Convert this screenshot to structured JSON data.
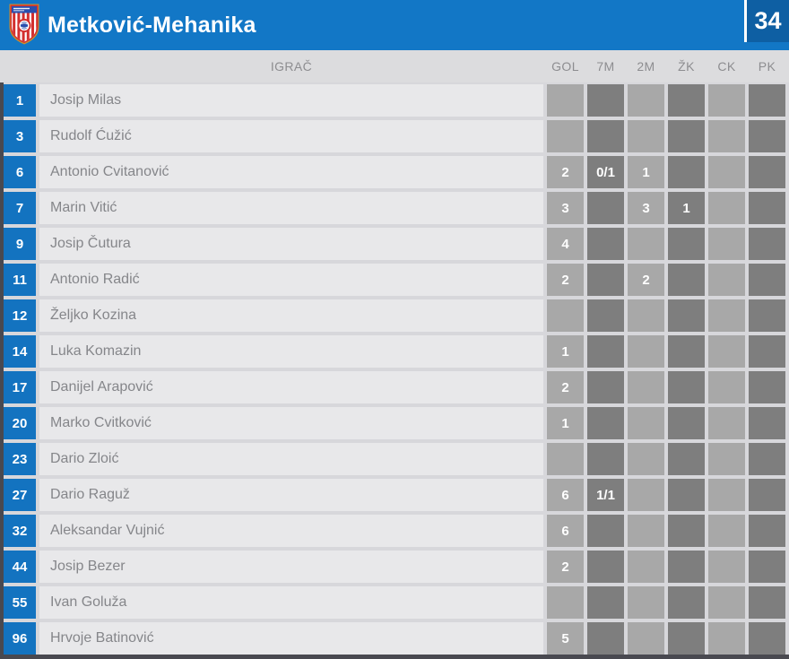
{
  "header": {
    "team_name": "Metković-Mehanika",
    "score": "34",
    "logo_icon": "club-crest-icon",
    "colors": {
      "bar_blue": "#1277c6",
      "score_box_blue": "#0e5fa3",
      "number_cell_blue": "#1373c0",
      "stat_cell_light": "#a8a8a8",
      "stat_cell_dark": "#7e7e7e"
    }
  },
  "table": {
    "player_column_label": "IGRAČ",
    "stat_columns": [
      "GOL",
      "7M",
      "2M",
      "ŽK",
      "CK",
      "PK"
    ],
    "players": [
      {
        "number": "1",
        "name": "Josip Milas",
        "stats": [
          "",
          "",
          "",
          "",
          "",
          ""
        ]
      },
      {
        "number": "3",
        "name": "Rudolf Ćužić",
        "stats": [
          "",
          "",
          "",
          "",
          "",
          ""
        ]
      },
      {
        "number": "6",
        "name": "Antonio Cvitanović",
        "stats": [
          "2",
          "0/1",
          "1",
          "",
          "",
          ""
        ]
      },
      {
        "number": "7",
        "name": "Marin Vitić",
        "stats": [
          "3",
          "",
          "3",
          "1",
          "",
          ""
        ]
      },
      {
        "number": "9",
        "name": "Josip Čutura",
        "stats": [
          "4",
          "",
          "",
          "",
          "",
          ""
        ]
      },
      {
        "number": "11",
        "name": "Antonio Radić",
        "stats": [
          "2",
          "",
          "2",
          "",
          "",
          ""
        ]
      },
      {
        "number": "12",
        "name": "Željko Kozina",
        "stats": [
          "",
          "",
          "",
          "",
          "",
          ""
        ]
      },
      {
        "number": "14",
        "name": "Luka Komazin",
        "stats": [
          "1",
          "",
          "",
          "",
          "",
          ""
        ]
      },
      {
        "number": "17",
        "name": "Danijel Arapović",
        "stats": [
          "2",
          "",
          "",
          "",
          "",
          ""
        ]
      },
      {
        "number": "20",
        "name": "Marko Cvitković",
        "stats": [
          "1",
          "",
          "",
          "",
          "",
          ""
        ]
      },
      {
        "number": "23",
        "name": "Dario Zloić",
        "stats": [
          "",
          "",
          "",
          "",
          "",
          ""
        ]
      },
      {
        "number": "27",
        "name": "Dario Raguž",
        "stats": [
          "6",
          "1/1",
          "",
          "",
          "",
          ""
        ]
      },
      {
        "number": "32",
        "name": "Aleksandar Vujnić",
        "stats": [
          "6",
          "",
          "",
          "",
          "",
          ""
        ]
      },
      {
        "number": "44",
        "name": "Josip Bezer",
        "stats": [
          "2",
          "",
          "",
          "",
          "",
          ""
        ]
      },
      {
        "number": "55",
        "name": "Ivan Goluža",
        "stats": [
          "",
          "",
          "",
          "",
          "",
          ""
        ]
      },
      {
        "number": "96",
        "name": "Hrvoje Batinović",
        "stats": [
          "5",
          "",
          "",
          "",
          "",
          ""
        ]
      }
    ]
  }
}
